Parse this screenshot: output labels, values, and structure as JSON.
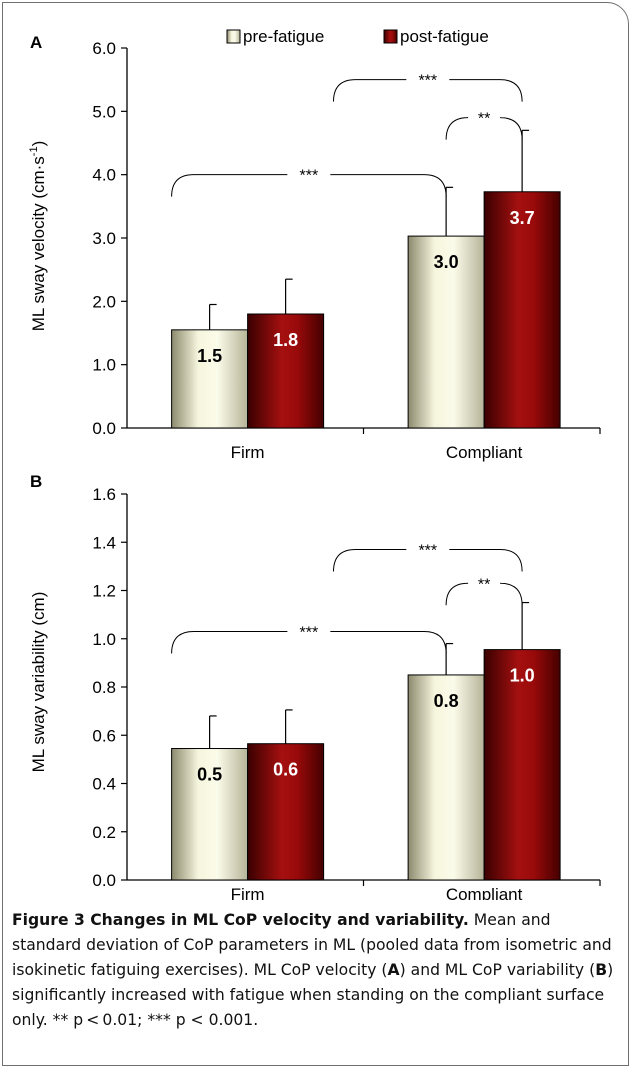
{
  "colors": {
    "pre": "#e2e0bf",
    "post": "#7a0000",
    "axis": "#000000"
  },
  "chart_data": [
    {
      "panel_label": "A",
      "type": "bar",
      "categories": [
        "Firm",
        "Compliant"
      ],
      "ylabel": "ML sway velocity (cm·s",
      "ylabel_sup": "-1",
      "ylabel_tail": ")",
      "ylim": [
        0,
        6
      ],
      "ytick_labels": [
        "0.0",
        "1.0",
        "2.0",
        "3.0",
        "4.0",
        "5.0",
        "6.0"
      ],
      "legend": [
        "pre-fatigue",
        "post-fatigue"
      ],
      "legend_position": "top",
      "series": [
        {
          "name": "pre-fatigue",
          "values": [
            1.55,
            3.03
          ],
          "errors": [
            0.4,
            0.77
          ],
          "labels": [
            "1.5",
            "3.0"
          ]
        },
        {
          "name": "post-fatigue",
          "values": [
            1.8,
            3.73
          ],
          "errors": [
            0.55,
            0.97
          ],
          "labels": [
            "1.8",
            "3.7"
          ]
        }
      ],
      "significance": [
        {
          "label": "***",
          "from": "Firm",
          "to": "Compliant pre-fatigue",
          "level": 4.0
        },
        {
          "label": "**",
          "from": "Compliant pre-fatigue",
          "to": "Compliant post-fatigue",
          "level": 4.9
        },
        {
          "label": "***",
          "from": "Firm",
          "to": "Compliant post-fatigue",
          "level": 5.5
        }
      ]
    },
    {
      "panel_label": "B",
      "type": "bar",
      "categories": [
        "Firm",
        "Compliant"
      ],
      "ylabel": "ML sway variability (cm)",
      "ylim": [
        0,
        1.6
      ],
      "ytick_labels": [
        "0.0",
        "0.2",
        "0.4",
        "0.6",
        "0.8",
        "1.0",
        "1.2",
        "1.4",
        "1.6"
      ],
      "series": [
        {
          "name": "pre-fatigue",
          "values": [
            0.545,
            0.85
          ],
          "errors": [
            0.135,
            0.13
          ],
          "labels": [
            "0.5",
            "0.8"
          ]
        },
        {
          "name": "post-fatigue",
          "values": [
            0.565,
            0.955
          ],
          "errors": [
            0.14,
            0.195
          ],
          "labels": [
            "0.6",
            "1.0"
          ]
        }
      ],
      "significance": [
        {
          "label": "***",
          "from": "Firm",
          "to": "Compliant pre-fatigue",
          "level": 1.03
        },
        {
          "label": "**",
          "from": "Compliant pre-fatigue",
          "to": "Compliant post-fatigue",
          "level": 1.23
        },
        {
          "label": "***",
          "from": "Firm",
          "to": "Compliant post-fatigue",
          "level": 1.37
        }
      ]
    }
  ],
  "caption": {
    "title": "Figure 3 Changes in ML CoP velocity and variability.",
    "text_1": " Mean and standard deviation of CoP parameters in ML (pooled data from isometric and isokinetic fatiguing exercises). ML CoP velocity (",
    "bold_a": "A",
    "text_2": ") and ML CoP variability (",
    "bold_b": "B",
    "text_3": ") significantly increased with fatigue when standing on the compliant surface only. ** p < 0.01; *** p < 0.001."
  }
}
